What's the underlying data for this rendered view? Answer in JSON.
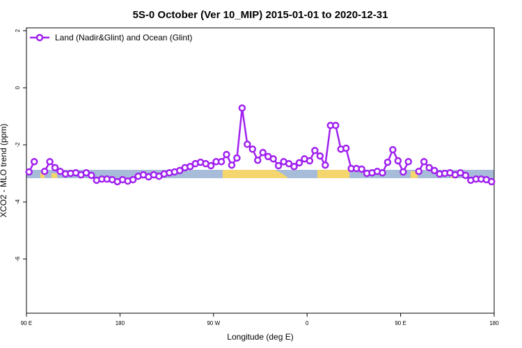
{
  "chart_data": {
    "type": "line",
    "title": "5S-0 October (Ver 10_MIP)   2015-01-01 to 2020-12-31",
    "x_label": "Longitude (deg E)",
    "y_label": "XCO2 - MLO trend (ppm)",
    "xlim": [
      90,
      540
    ],
    "xticks": [
      {
        "value": 90,
        "label": "90 E"
      },
      180,
      {
        "value": 270,
        "label": "90 W"
      },
      {
        "value": 360,
        "label": "0"
      },
      {
        "value": 450,
        "label": "90 E"
      },
      {
        "value": 540,
        "label": "180"
      }
    ],
    "ylim": [
      -7.9,
      2.1
    ],
    "yticks": [
      2,
      0,
      -2,
      -4,
      -6
    ],
    "legend": "top-left",
    "x": [
      92.5,
      97.5,
      102.5,
      107.5,
      112.5,
      117.5,
      122.5,
      127.5,
      132.5,
      137.5,
      142.5,
      147.5,
      152.5,
      157.5,
      162.5,
      167.5,
      172.5,
      177.5,
      182.5,
      187.5,
      192.5,
      197.5,
      202.5,
      207.5,
      212.5,
      217.5,
      222.5,
      227.5,
      232.5,
      237.5,
      242.5,
      247.5,
      252.5,
      257.5,
      262.5,
      267.5,
      272.5,
      277.5,
      282.5,
      287.5,
      292.5,
      297.5,
      302.5,
      307.5,
      312.5,
      317.5,
      322.5,
      327.5,
      332.5,
      337.5,
      342.5,
      347.5,
      352.5,
      357.5,
      362.5,
      367.5,
      372.5,
      377.5,
      382.5,
      387.5,
      392.5,
      397.5,
      402.5,
      407.5,
      412.5,
      417.5,
      422.5,
      427.5,
      432.5,
      437.5,
      442.5,
      447.5,
      452.5,
      457.5,
      462.5,
      467.5,
      472.5,
      477.5,
      482.5,
      487.5,
      492.5,
      497.5,
      502.5,
      507.5,
      512.5,
      517.5,
      522.5,
      527.5,
      532.5,
      537.5
    ],
    "series": [
      {
        "name": "Land (Nadir&Glint) and Ocean (Glint)",
        "color": "#a020f0",
        "values": [
          -2.95,
          -2.59,
          null,
          -2.93,
          -2.59,
          -2.8,
          -2.93,
          -3.02,
          -3.0,
          -2.98,
          -3.05,
          -2.98,
          -3.07,
          -3.24,
          -3.2,
          -3.2,
          -3.22,
          -3.29,
          -3.22,
          -3.27,
          -3.22,
          -3.1,
          -3.05,
          -3.12,
          -3.05,
          -3.1,
          -3.02,
          -2.98,
          -2.95,
          -2.9,
          -2.8,
          -2.76,
          -2.66,
          -2.61,
          -2.66,
          -2.73,
          -2.59,
          -2.59,
          -2.34,
          -2.71,
          -2.46,
          -0.71,
          -1.98,
          -2.15,
          -2.54,
          -2.27,
          -2.41,
          -2.49,
          -2.73,
          -2.59,
          -2.66,
          -2.76,
          -2.63,
          -2.49,
          -2.56,
          -2.2,
          -2.39,
          -2.71,
          -1.32,
          -1.32,
          -2.15,
          -2.12,
          -2.83,
          -2.83,
          -2.85,
          -3.0,
          -2.98,
          -2.93,
          -2.98,
          -2.61,
          -2.17,
          -2.56,
          -2.95,
          -2.59,
          null,
          -2.93,
          -2.59,
          -2.8,
          -2.9,
          -3.02,
          -3.0,
          -2.98,
          -3.05,
          -2.98,
          -3.07,
          -3.24,
          -3.2,
          -3.2,
          -3.22,
          -3.29
        ]
      }
    ]
  }
}
